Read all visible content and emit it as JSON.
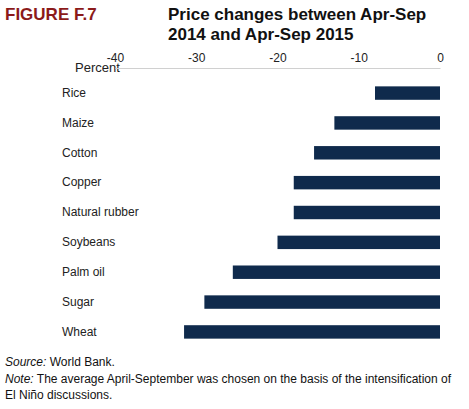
{
  "chart_data": {
    "type": "bar",
    "orientation": "horizontal",
    "figure_label": "FIGURE F.7",
    "title": "Price changes between Apr-Sep 2014 and Apr-Sep 2015",
    "xlabel": "Percent",
    "categories": [
      "Rice",
      "Maize",
      "Cotton",
      "Copper",
      "Natural rubber",
      "Soybeans",
      "Palm oil",
      "Sugar",
      "Wheat"
    ],
    "values": [
      -8,
      -13,
      -15.5,
      -18,
      -18,
      -20,
      -25.5,
      -29,
      -31.5
    ],
    "color": "#0f2a4c",
    "xlim": [
      -40,
      0
    ],
    "xticks": [
      -40,
      -30,
      -20,
      -10,
      0
    ],
    "grid": false,
    "source_label": "Source:",
    "source": "World Bank.",
    "note_label": "Note:",
    "note": "The average April-September was chosen on the basis of the intensification of El Niño discussions."
  }
}
